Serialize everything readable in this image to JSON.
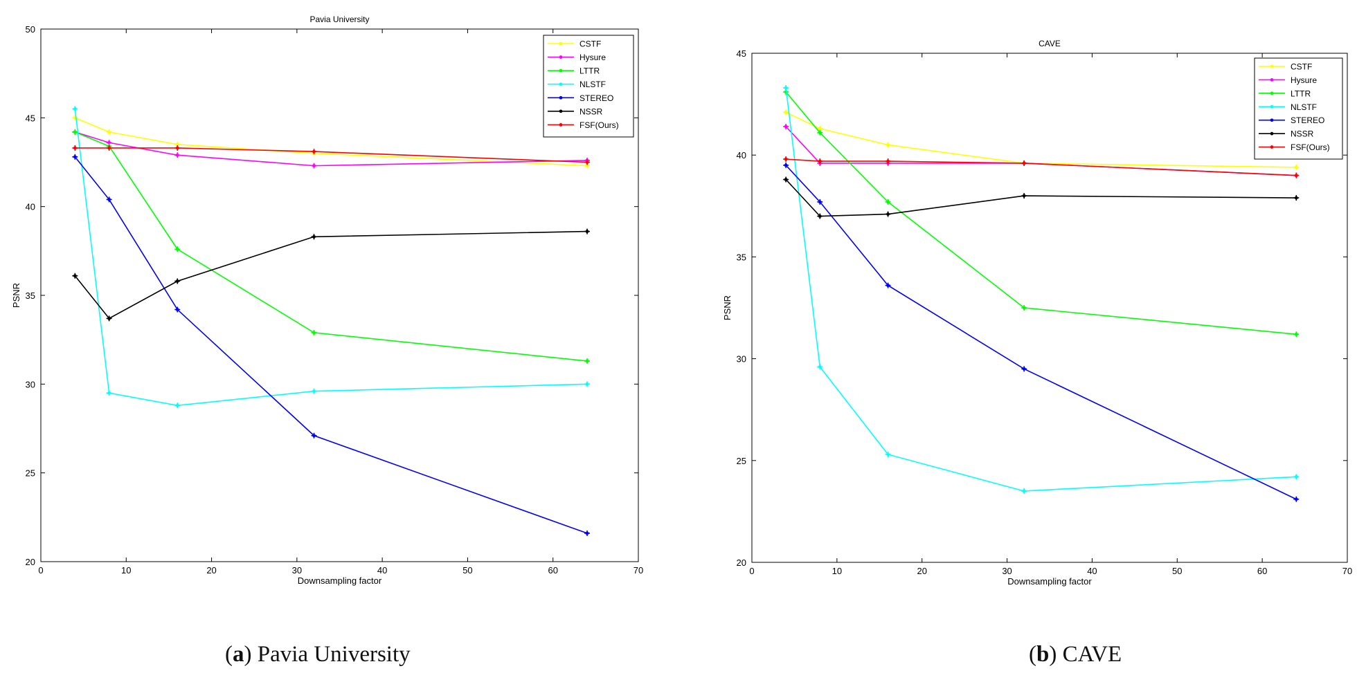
{
  "chart_data": [
    {
      "type": "line",
      "title": "Pavia University",
      "xlabel": "Downsampling factor",
      "ylabel": "PSNR",
      "xlim": [
        0,
        70
      ],
      "ylim": [
        20,
        50
      ],
      "xticks": [
        0,
        10,
        20,
        30,
        40,
        50,
        60,
        70
      ],
      "yticks": [
        20,
        25,
        30,
        35,
        40,
        45,
        50
      ],
      "legend_position": "top-right",
      "x": [
        4,
        8,
        16,
        32,
        64
      ],
      "series": [
        {
          "name": "CSTF",
          "color": "#ffff00",
          "values": [
            45.0,
            44.2,
            43.5,
            43.0,
            42.3
          ]
        },
        {
          "name": "Hysure",
          "color": "#ff00ff",
          "values": [
            44.2,
            43.6,
            42.9,
            42.3,
            42.6
          ]
        },
        {
          "name": "LTTR",
          "color": "#00ff00",
          "values": [
            44.2,
            43.4,
            37.6,
            32.9,
            31.3
          ]
        },
        {
          "name": "NLSTF",
          "color": "#00ffff",
          "values": [
            45.5,
            29.5,
            28.8,
            29.6,
            30.0
          ]
        },
        {
          "name": "STEREO",
          "color": "#0000ff",
          "values": [
            42.8,
            40.4,
            34.2,
            27.1,
            21.6
          ]
        },
        {
          "name": "NSSR",
          "color": "#000000",
          "values": [
            36.1,
            33.7,
            35.8,
            38.3,
            38.6
          ]
        },
        {
          "name": "FSF(Ours)",
          "color": "#ff0000",
          "values": [
            43.3,
            43.3,
            43.3,
            43.1,
            42.5
          ]
        }
      ]
    },
    {
      "type": "line",
      "title": "CAVE",
      "xlabel": "Downsampling factor",
      "ylabel": "PSNR",
      "xlim": [
        0,
        70
      ],
      "ylim": [
        20,
        45
      ],
      "xticks": [
        0,
        10,
        20,
        30,
        40,
        50,
        60,
        70
      ],
      "yticks": [
        20,
        25,
        30,
        35,
        40,
        45
      ],
      "legend_position": "top-right",
      "x": [
        4,
        8,
        16,
        32,
        64
      ],
      "series": [
        {
          "name": "CSTF",
          "color": "#ffff00",
          "values": [
            42.1,
            41.3,
            40.5,
            39.6,
            39.4
          ]
        },
        {
          "name": "Hysure",
          "color": "#ff00ff",
          "values": [
            41.4,
            39.6,
            39.6,
            39.6,
            39.0
          ]
        },
        {
          "name": "LTTR",
          "color": "#00ff00",
          "values": [
            43.1,
            41.1,
            37.7,
            32.5,
            31.2
          ]
        },
        {
          "name": "NLSTF",
          "color": "#00ffff",
          "values": [
            43.3,
            29.6,
            25.3,
            23.5,
            24.2
          ]
        },
        {
          "name": "STEREO",
          "color": "#0000ff",
          "values": [
            39.5,
            37.7,
            33.6,
            29.5,
            23.1
          ]
        },
        {
          "name": "NSSR",
          "color": "#000000",
          "values": [
            38.8,
            37.0,
            37.1,
            38.0,
            37.9
          ]
        },
        {
          "name": "FSF(Ours)",
          "color": "#ff0000",
          "values": [
            39.8,
            39.7,
            39.7,
            39.6,
            39.0
          ]
        }
      ]
    }
  ],
  "captions": [
    {
      "label": "(a)",
      "letter": "a",
      "text": "Pavia University"
    },
    {
      "label": "(b)",
      "letter": "b",
      "text": "CAVE"
    }
  ]
}
